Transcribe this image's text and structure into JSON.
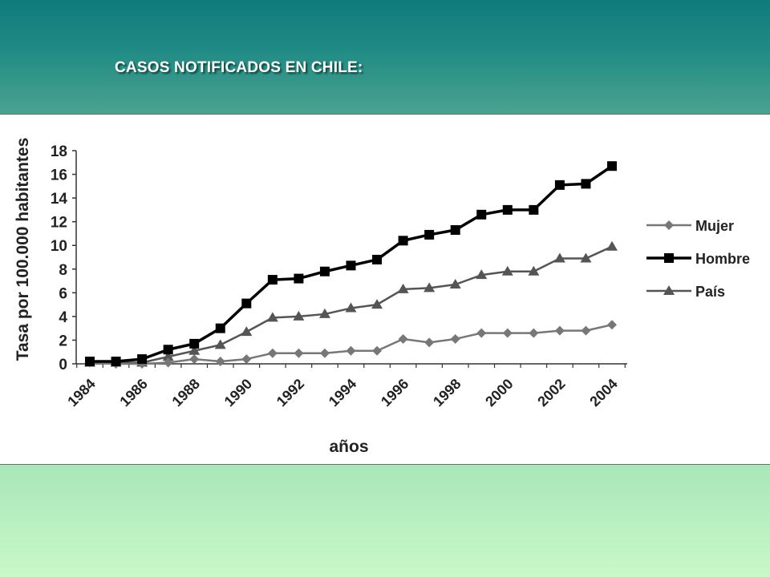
{
  "slide": {
    "title": "CASOS NOTIFICADOS EN CHILE:"
  },
  "chart_data": {
    "type": "line",
    "title": "",
    "xlabel": "años",
    "ylabel": "Tasa por 100.000 habitantes",
    "ylim": [
      0,
      18
    ],
    "yticks": [
      0,
      2,
      4,
      6,
      8,
      10,
      12,
      14,
      16,
      18
    ],
    "xtick_labels": [
      "1984",
      "1986",
      "1988",
      "1990",
      "1992",
      "1994",
      "1996",
      "1998",
      "2000",
      "2002",
      "2004"
    ],
    "x": [
      1984,
      1985,
      1986,
      1987,
      1988,
      1989,
      1990,
      1991,
      1992,
      1993,
      1994,
      1995,
      1996,
      1997,
      1998,
      1999,
      2000,
      2001,
      2002,
      2003,
      2004
    ],
    "grid": false,
    "legend_position": "right",
    "series": [
      {
        "name": "Mujer",
        "marker": "diamond",
        "color": "#777777",
        "values": [
          0.1,
          0.0,
          0.0,
          0.1,
          0.4,
          0.2,
          0.4,
          0.9,
          0.9,
          0.9,
          1.1,
          1.1,
          2.1,
          1.8,
          2.1,
          2.6,
          2.6,
          2.6,
          2.8,
          2.8,
          3.3
        ]
      },
      {
        "name": "Hombre",
        "marker": "square",
        "color": "#000000",
        "values": [
          0.2,
          0.2,
          0.4,
          1.2,
          1.7,
          3.0,
          5.1,
          7.1,
          7.2,
          7.8,
          8.3,
          8.8,
          10.4,
          10.9,
          11.3,
          12.6,
          13.0,
          13.0,
          15.1,
          15.2,
          16.7
        ]
      },
      {
        "name": "País",
        "marker": "triangle",
        "color": "#555555",
        "values": [
          0.1,
          0.1,
          0.1,
          0.6,
          1.1,
          1.6,
          2.7,
          3.9,
          4.0,
          4.2,
          4.7,
          5.0,
          6.3,
          6.4,
          6.7,
          7.5,
          7.8,
          7.8,
          8.9,
          8.9,
          9.9
        ]
      }
    ]
  }
}
